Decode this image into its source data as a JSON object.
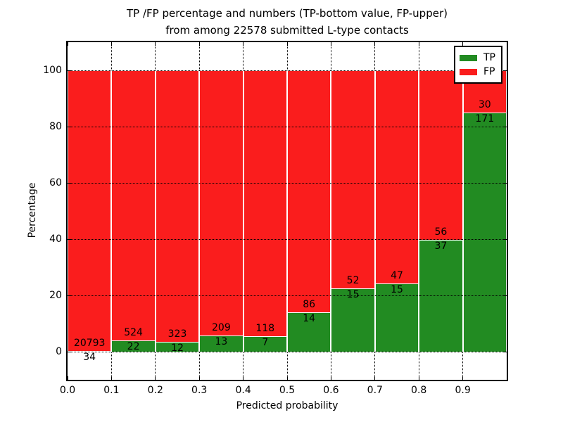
{
  "title": {
    "line1": "TP /FP percentage and numbers (TP-bottom value, FP-upper)",
    "line2": "from among 22578 submitted L-type contacts"
  },
  "chart_data": {
    "type": "bar",
    "subtype": "stacked-percentage",
    "title": "TP /FP percentage and numbers (TP-bottom value, FP-upper) from among 22578 submitted L-type contacts",
    "xlabel": "Predicted probability",
    "ylabel": "Percentage",
    "xlim": [
      0.0,
      1.0
    ],
    "ylim": [
      -10,
      110
    ],
    "x_tick_labels": [
      "0.0",
      "0.1",
      "0.2",
      "0.3",
      "0.4",
      "0.5",
      "0.6",
      "0.7",
      "0.8",
      "0.9"
    ],
    "y_tick_values": [
      0,
      20,
      40,
      60,
      80,
      100
    ],
    "grid": "dotted both axes",
    "bin_width": 0.1,
    "bin_starts": [
      0.0,
      0.1,
      0.2,
      0.3,
      0.4,
      0.5,
      0.6,
      0.7,
      0.8,
      0.9
    ],
    "series": [
      {
        "name": "TP",
        "color": "#228b22",
        "counts": [
          34,
          22,
          12,
          13,
          7,
          14,
          15,
          15,
          37,
          171
        ],
        "percent": [
          0.16,
          4.03,
          3.58,
          5.86,
          5.6,
          14.0,
          22.39,
          24.19,
          39.78,
          85.07
        ]
      },
      {
        "name": "FP",
        "color": "#fa1d1d",
        "counts": [
          20793,
          524,
          323,
          209,
          118,
          86,
          52,
          47,
          56,
          30
        ],
        "percent": [
          99.84,
          95.97,
          96.42,
          94.14,
          94.4,
          86.0,
          77.61,
          75.81,
          60.22,
          14.93
        ]
      }
    ],
    "total_contacts": 22578,
    "legend": {
      "position": "upper right",
      "entries": [
        "TP",
        "FP"
      ]
    }
  },
  "colors": {
    "tp_green": "#228b22",
    "fp_red": "#fa1d1d",
    "axis": "#000000",
    "background": "#ffffff"
  }
}
